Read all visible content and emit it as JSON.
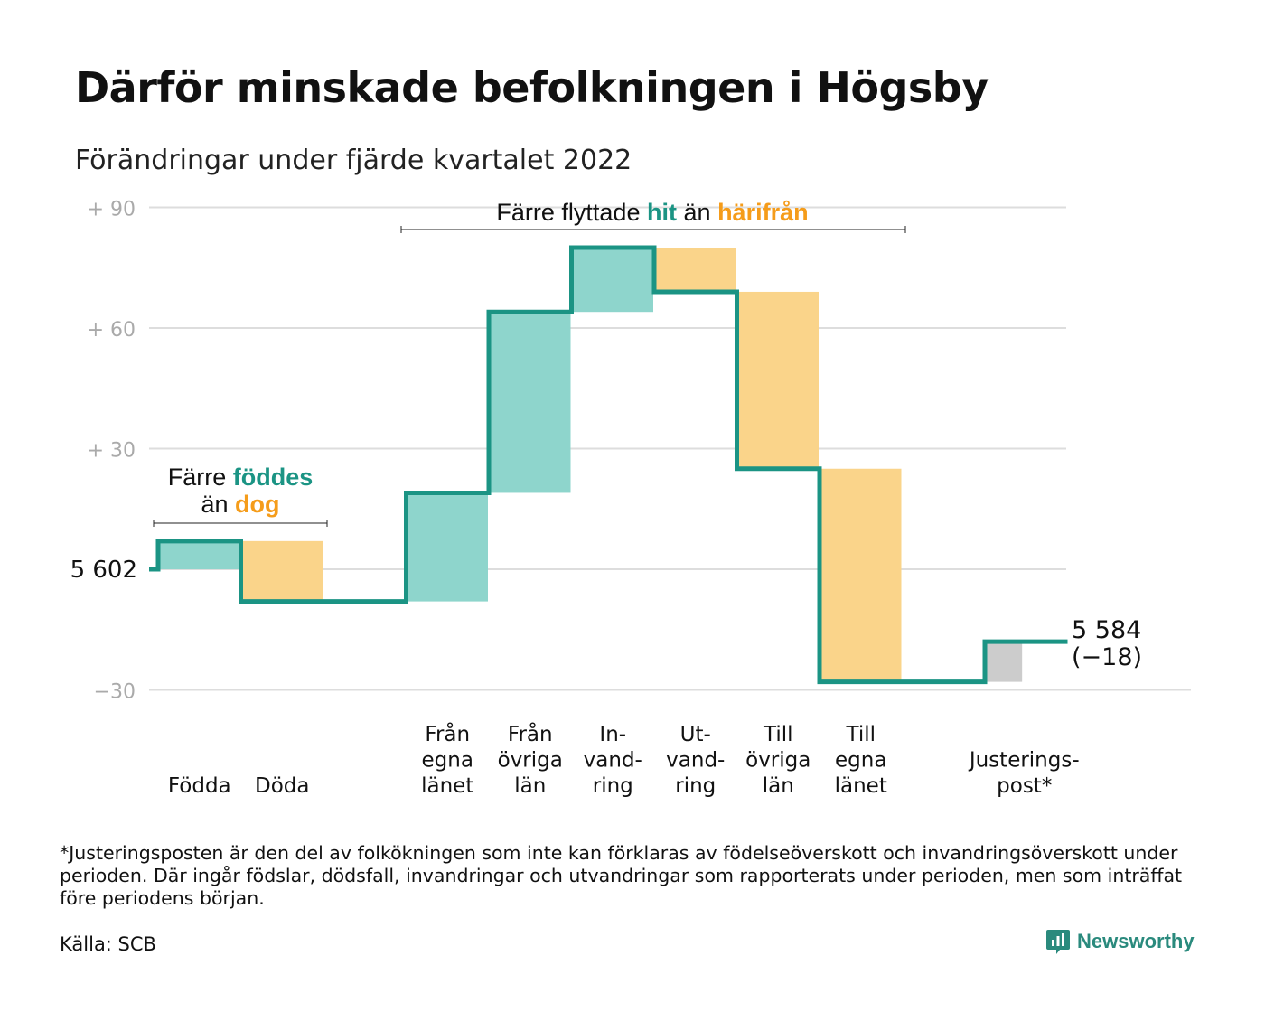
{
  "title": "Därför minskade befolkningen i Högsby",
  "subtitle": "Förändringar under fjärde kvartalet 2022",
  "chart_data": {
    "type": "waterfall",
    "start_label": "5 602",
    "start_value": 5602,
    "end_label": "5 584",
    "end_change_label": "(−18)",
    "end_value": 5584,
    "y_ticks": [
      {
        "value": 90,
        "label": "+ 90"
      },
      {
        "value": 60,
        "label": "+ 60"
      },
      {
        "value": 30,
        "label": "+ 30"
      },
      {
        "value": 0,
        "label": "5 602"
      },
      {
        "value": -30,
        "label": "−30"
      }
    ],
    "ylim": [
      -30,
      90
    ],
    "steps": [
      {
        "key": "fodda",
        "label": [
          "Födda"
        ],
        "change": 7,
        "kind": "in"
      },
      {
        "key": "doda",
        "label": [
          "Döda"
        ],
        "change": -15,
        "kind": "out"
      },
      {
        "key": "gap",
        "label": [],
        "change": 0,
        "kind": "gap"
      },
      {
        "key": "fran_egna",
        "label": [
          "Från",
          "egna",
          "länet"
        ],
        "change": 27,
        "kind": "in"
      },
      {
        "key": "fran_ovriga",
        "label": [
          "Från",
          "övriga",
          "län"
        ],
        "change": 45,
        "kind": "in"
      },
      {
        "key": "invandring",
        "label": [
          "In-",
          "vand-",
          "ring"
        ],
        "change": 16,
        "kind": "in"
      },
      {
        "key": "utvandring",
        "label": [
          "Ut-",
          "vand-",
          "ring"
        ],
        "change": -11,
        "kind": "out"
      },
      {
        "key": "till_ovriga",
        "label": [
          "Till",
          "övriga",
          "län"
        ],
        "change": -44,
        "kind": "out"
      },
      {
        "key": "till_egna",
        "label": [
          "Till",
          "egna",
          "länet"
        ],
        "change": -53,
        "kind": "out"
      },
      {
        "key": "gap2",
        "label": [],
        "change": 0,
        "kind": "gap"
      },
      {
        "key": "justering",
        "label": [
          "Justerings-",
          "post*"
        ],
        "change": 10,
        "kind": "adj"
      }
    ],
    "annotations": {
      "births": {
        "line1": "Färre",
        "hi1": "föddes",
        "line2": "än",
        "hi2": "dog"
      },
      "migration": {
        "pre": "Färre flyttade",
        "hi1": "hit",
        "mid": "än",
        "hi2": "härifrån"
      }
    },
    "colors": {
      "line": "#1b9484",
      "in": "#8ed5cc",
      "out": "#fad48a",
      "adj": "#cccccc",
      "grid": "#dddddd",
      "tick": "#aaaaaa",
      "hit": "#1b9484",
      "harifran": "#f59c1a"
    }
  },
  "footnote": "*Justeringsposten är den del av folkökningen som inte kan förklaras av födelseöverskott och invandringsöverskott under perioden. Där ingår födslar, dödsfall, invandringar och utvandringar som rapporterats under perioden, men som inträffat före periodens början.",
  "source": "Källa: SCB",
  "brand": {
    "name": "Newsworthy",
    "icon": "newsworthy-logo-icon"
  }
}
